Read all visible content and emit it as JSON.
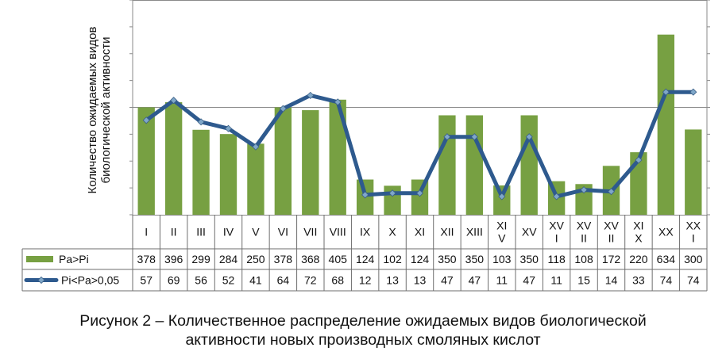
{
  "chart_data": {
    "type": "bar",
    "ylabel": "Количество ожидаемых видов\nбиологической активности",
    "categories": [
      "I",
      "II",
      "III",
      "IV",
      "V",
      "VI",
      "VII",
      "VIII",
      "IX",
      "X",
      "XI",
      "XII",
      "XIII",
      "XI\nV",
      "XV",
      "XV\nI",
      "XV\nII",
      "XV\nII",
      "XI\nX",
      "XX",
      "XX\nI"
    ],
    "series": [
      {
        "name": "Pa>Pi",
        "type": "bar",
        "color": "#77A042",
        "values": [
          378,
          396,
          299,
          284,
          250,
          378,
          368,
          405,
          124,
          102,
          124,
          350,
          350,
          103,
          350,
          118,
          108,
          172,
          220,
          634,
          300
        ]
      },
      {
        "name": "Pi<Pa>0,05",
        "type": "line",
        "color": "#2E5A8E",
        "values": [
          57,
          69,
          56,
          52,
          41,
          64,
          72,
          68,
          12,
          13,
          13,
          47,
          47,
          11,
          47,
          11,
          15,
          14,
          33,
          74,
          74
        ]
      }
    ],
    "grid": true,
    "legend": "data-table"
  },
  "caption": "Рисунок 2 – Количественное распределение ожидаемых видов биологической\nактивности новых производных смоляных кислот"
}
